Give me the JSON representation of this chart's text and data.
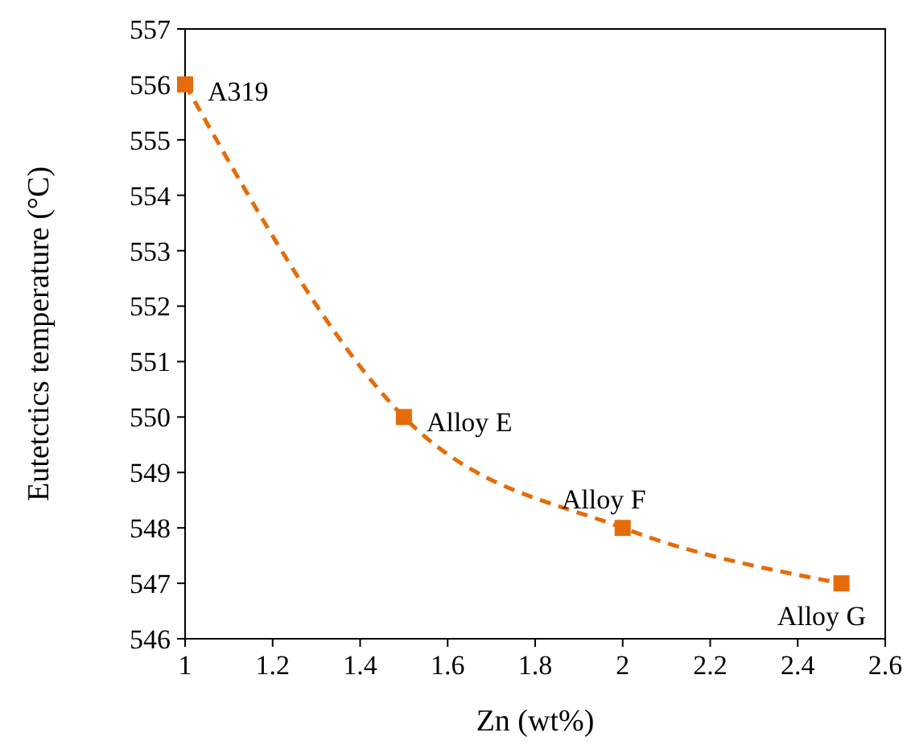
{
  "chart_data": {
    "type": "line",
    "xlabel": "Zn (wt%)",
    "ylabel": "Eutetctics temperature (°C)",
    "x": [
      1,
      1.5,
      2,
      2.5
    ],
    "series": [
      {
        "color": "#e46c0a",
        "values": [
          556,
          550,
          548,
          547
        ]
      }
    ],
    "marker": "square",
    "line_style": "dashed",
    "grid": false,
    "xlim": [
      1,
      2.6
    ],
    "xticks": [
      1,
      1.2,
      1.4,
      1.6,
      1.8,
      2,
      2.2,
      2.4,
      2.6
    ],
    "ylim": [
      546,
      557
    ],
    "yticks": [
      546,
      547,
      548,
      549,
      550,
      551,
      552,
      553,
      554,
      555,
      556,
      557
    ],
    "annotations": [
      {
        "text": "A319",
        "x": 1,
        "y": 556
      },
      {
        "text": "Alloy E",
        "x": 1.5,
        "y": 550
      },
      {
        "text": "Alloy F",
        "x": 2,
        "y": 548
      },
      {
        "text": "Alloy G",
        "x": 2.5,
        "y": 547
      }
    ]
  }
}
